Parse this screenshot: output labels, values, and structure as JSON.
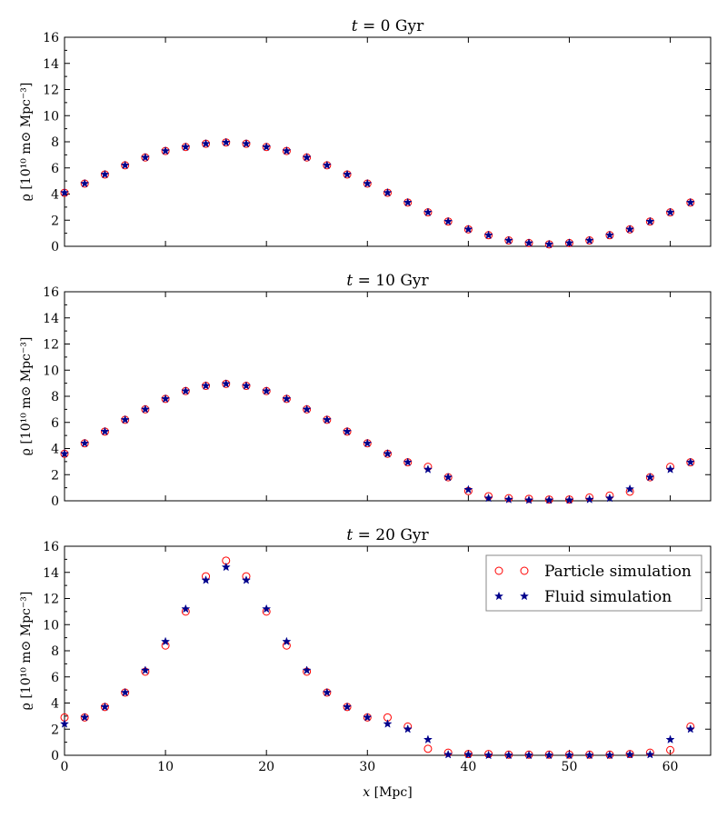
{
  "chart_data": [
    {
      "type": "scatter",
      "title": "t = 0 Gyr",
      "title_parts": {
        "var": "t",
        "eq": " = 0 ",
        "unit": "Gyr"
      },
      "ylabel": "ϱ [10¹⁰ m⊙ Mpc⁻³]",
      "xlabel": "",
      "xlim": [
        0,
        64
      ],
      "ylim": [
        0,
        16
      ],
      "xticks": [
        0,
        10,
        20,
        30,
        40,
        50,
        60
      ],
      "yticks": [
        0,
        2,
        4,
        6,
        8,
        10,
        12,
        14,
        16
      ],
      "show_xtick_labels": false,
      "grid": false,
      "series": [
        {
          "name": "Particle simulation",
          "marker": "circle",
          "color": "#ff0000",
          "x": [
            0,
            2,
            4,
            6,
            8,
            10,
            12,
            14,
            16,
            18,
            20,
            22,
            24,
            26,
            28,
            30,
            32,
            34,
            36,
            38,
            40,
            42,
            44,
            46,
            48,
            50,
            52,
            54,
            56,
            58,
            60,
            62
          ],
          "y": [
            4.1,
            4.8,
            5.5,
            6.2,
            6.8,
            7.3,
            7.6,
            7.85,
            7.95,
            7.85,
            7.6,
            7.3,
            6.8,
            6.2,
            5.5,
            4.8,
            4.1,
            3.35,
            2.6,
            1.9,
            1.3,
            0.85,
            0.45,
            0.25,
            0.15,
            0.25,
            0.45,
            0.85,
            1.3,
            1.9,
            2.6,
            3.35
          ]
        },
        {
          "name": "Fluid simulation",
          "marker": "star",
          "color": "#00008b",
          "x": [
            0,
            2,
            4,
            6,
            8,
            10,
            12,
            14,
            16,
            18,
            20,
            22,
            24,
            26,
            28,
            30,
            32,
            34,
            36,
            38,
            40,
            42,
            44,
            46,
            48,
            50,
            52,
            54,
            56,
            58,
            60,
            62
          ],
          "y": [
            4.1,
            4.8,
            5.5,
            6.2,
            6.8,
            7.3,
            7.6,
            7.85,
            7.95,
            7.85,
            7.6,
            7.3,
            6.8,
            6.2,
            5.5,
            4.8,
            4.1,
            3.35,
            2.6,
            1.9,
            1.3,
            0.85,
            0.45,
            0.25,
            0.15,
            0.25,
            0.45,
            0.85,
            1.3,
            1.9,
            2.6,
            3.35
          ]
        }
      ]
    },
    {
      "type": "scatter",
      "title": "t = 10 Gyr",
      "title_parts": {
        "var": "t",
        "eq": " = 10 ",
        "unit": "Gyr"
      },
      "ylabel": "ϱ [10¹⁰ m⊙ Mpc⁻³]",
      "xlabel": "",
      "xlim": [
        0,
        64
      ],
      "ylim": [
        0,
        16
      ],
      "xticks": [
        0,
        10,
        20,
        30,
        40,
        50,
        60
      ],
      "yticks": [
        0,
        2,
        4,
        6,
        8,
        10,
        12,
        14,
        16
      ],
      "show_xtick_labels": false,
      "grid": false,
      "series": [
        {
          "name": "Particle simulation",
          "marker": "circle",
          "color": "#ff0000",
          "x": [
            0,
            2,
            4,
            6,
            8,
            10,
            12,
            14,
            16,
            18,
            20,
            22,
            24,
            26,
            28,
            30,
            32,
            34,
            36,
            38,
            40,
            42,
            44,
            46,
            48,
            50,
            52,
            54,
            56,
            58,
            60,
            62
          ],
          "y": [
            3.6,
            4.4,
            5.3,
            6.2,
            7.0,
            7.8,
            8.4,
            8.8,
            8.95,
            8.8,
            8.4,
            7.8,
            7.0,
            6.2,
            5.3,
            4.4,
            3.6,
            2.95,
            2.6,
            1.8,
            0.75,
            0.35,
            0.2,
            0.15,
            0.1,
            0.1,
            0.25,
            0.4,
            0.7,
            1.8,
            2.6,
            2.95
          ]
        },
        {
          "name": "Fluid simulation",
          "marker": "star",
          "color": "#00008b",
          "x": [
            0,
            2,
            4,
            6,
            8,
            10,
            12,
            14,
            16,
            18,
            20,
            22,
            24,
            26,
            28,
            30,
            32,
            34,
            36,
            38,
            40,
            42,
            44,
            46,
            48,
            50,
            52,
            54,
            56,
            58,
            60,
            62
          ],
          "y": [
            3.6,
            4.4,
            5.3,
            6.2,
            7.0,
            7.8,
            8.4,
            8.8,
            8.95,
            8.8,
            8.4,
            7.8,
            7.0,
            6.2,
            5.3,
            4.4,
            3.6,
            2.95,
            2.4,
            1.8,
            0.85,
            0.2,
            0.1,
            0.05,
            0.05,
            0.05,
            0.1,
            0.2,
            0.9,
            1.8,
            2.4,
            2.95
          ]
        }
      ]
    },
    {
      "type": "scatter",
      "title": "t = 20 Gyr",
      "title_parts": {
        "var": "t",
        "eq": " = 20 ",
        "unit": "Gyr"
      },
      "ylabel": "ϱ [10¹⁰ m⊙ Mpc⁻³]",
      "xlabel": "x [Mpc]",
      "xlabel_parts": {
        "var": "x",
        "unit": " [Mpc]"
      },
      "xlim": [
        0,
        64
      ],
      "ylim": [
        0,
        16
      ],
      "xticks": [
        0,
        10,
        20,
        30,
        40,
        50,
        60
      ],
      "yticks": [
        0,
        2,
        4,
        6,
        8,
        10,
        12,
        14,
        16
      ],
      "show_xtick_labels": true,
      "grid": false,
      "legend": {
        "placement": "top-right",
        "entries": [
          "Particle simulation",
          "Fluid simulation"
        ]
      },
      "series": [
        {
          "name": "Particle simulation",
          "marker": "circle",
          "color": "#ff0000",
          "x": [
            0,
            2,
            4,
            6,
            8,
            10,
            12,
            14,
            16,
            18,
            20,
            22,
            24,
            26,
            28,
            30,
            32,
            34,
            36,
            38,
            40,
            42,
            44,
            46,
            48,
            50,
            52,
            54,
            56,
            58,
            60,
            62
          ],
          "y": [
            2.9,
            2.9,
            3.7,
            4.8,
            6.4,
            8.4,
            11.0,
            13.7,
            14.9,
            13.7,
            11.0,
            8.4,
            6.4,
            4.8,
            3.7,
            2.9,
            2.9,
            2.2,
            0.5,
            0.2,
            0.1,
            0.1,
            0.05,
            0.05,
            0.05,
            0.05,
            0.05,
            0.05,
            0.1,
            0.2,
            0.4,
            2.2
          ]
        },
        {
          "name": "Fluid simulation",
          "marker": "star",
          "color": "#00008b",
          "x": [
            0,
            2,
            4,
            6,
            8,
            10,
            12,
            14,
            16,
            18,
            20,
            22,
            24,
            26,
            28,
            30,
            32,
            34,
            36,
            38,
            40,
            42,
            44,
            46,
            48,
            50,
            52,
            54,
            56,
            58,
            60,
            62
          ],
          "y": [
            2.4,
            2.9,
            3.7,
            4.8,
            6.5,
            8.7,
            11.2,
            13.4,
            14.4,
            13.4,
            11.2,
            8.7,
            6.5,
            4.8,
            3.7,
            2.9,
            2.4,
            2.0,
            1.2,
            0.05,
            0.05,
            0.0,
            0.0,
            0.0,
            0.0,
            0.0,
            0.0,
            0.0,
            0.05,
            0.05,
            1.2,
            2.0
          ]
        }
      ]
    }
  ]
}
